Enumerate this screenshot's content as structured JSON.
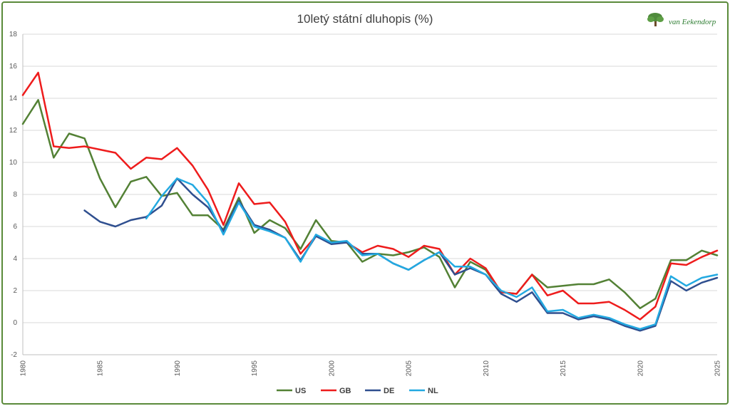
{
  "chart_data": {
    "type": "line",
    "title": "10letý státní dluhopis (%)",
    "xlabel": "",
    "ylabel": "",
    "xlim": [
      1980,
      2025
    ],
    "ylim": [
      -2,
      18
    ],
    "yticks": [
      -2,
      0,
      2,
      4,
      6,
      8,
      10,
      12,
      14,
      16,
      18
    ],
    "xticks": [
      1980,
      1985,
      1990,
      1995,
      2000,
      2005,
      2010,
      2015,
      2020,
      2025
    ],
    "grid": "horizontal",
    "legend_position": "bottom",
    "series": [
      {
        "name": "US",
        "color": "#538135",
        "x": [
          1980,
          1981,
          1982,
          1983,
          1984,
          1985,
          1986,
          1987,
          1988,
          1989,
          1990,
          1991,
          1992,
          1993,
          1994,
          1995,
          1996,
          1997,
          1998,
          1999,
          2000,
          2001,
          2002,
          2003,
          2004,
          2005,
          2006,
          2007,
          2008,
          2009,
          2010,
          2011,
          2012,
          2013,
          2014,
          2015,
          2016,
          2017,
          2018,
          2019,
          2020,
          2021,
          2022,
          2023,
          2024,
          2025
        ],
        "values": [
          12.4,
          13.9,
          10.3,
          11.8,
          11.5,
          9.0,
          7.2,
          8.8,
          9.1,
          7.9,
          8.1,
          6.7,
          6.7,
          5.8,
          7.8,
          5.6,
          6.4,
          5.9,
          4.6,
          6.4,
          5.1,
          5.0,
          3.8,
          4.3,
          4.2,
          4.4,
          4.7,
          4.1,
          2.2,
          3.8,
          3.3,
          1.9,
          1.8,
          3.0,
          2.2,
          2.3,
          2.4,
          2.4,
          2.7,
          1.9,
          0.9,
          1.5,
          3.9,
          3.9,
          4.5,
          4.2
        ]
      },
      {
        "name": "GB",
        "color": "#ee1c1c",
        "x": [
          1980,
          1981,
          1982,
          1983,
          1984,
          1985,
          1986,
          1987,
          1988,
          1989,
          1990,
          1991,
          1992,
          1993,
          1994,
          1995,
          1996,
          1997,
          1998,
          1999,
          2000,
          2001,
          2002,
          2003,
          2004,
          2005,
          2006,
          2007,
          2008,
          2009,
          2010,
          2011,
          2012,
          2013,
          2014,
          2015,
          2016,
          2017,
          2018,
          2019,
          2020,
          2021,
          2022,
          2023,
          2024,
          2025
        ],
        "values": [
          14.2,
          15.6,
          11.0,
          10.9,
          11.0,
          10.8,
          10.6,
          9.6,
          10.3,
          10.2,
          10.9,
          9.8,
          8.3,
          6.1,
          8.7,
          7.4,
          7.5,
          6.3,
          4.3,
          5.4,
          5.0,
          5.0,
          4.4,
          4.8,
          4.6,
          4.1,
          4.8,
          4.6,
          3.0,
          4.0,
          3.4,
          1.9,
          1.8,
          3.0,
          1.7,
          2.0,
          1.2,
          1.2,
          1.3,
          0.8,
          0.2,
          1.0,
          3.7,
          3.6,
          4.1,
          4.5
        ]
      },
      {
        "name": "DE",
        "color": "#2f4f8f",
        "x": [
          1984,
          1985,
          1986,
          1987,
          1988,
          1989,
          1990,
          1991,
          1992,
          1993,
          1994,
          1995,
          1996,
          1997,
          1998,
          1999,
          2000,
          2001,
          2002,
          2003,
          2004,
          2005,
          2006,
          2007,
          2008,
          2009,
          2010,
          2011,
          2012,
          2013,
          2014,
          2015,
          2016,
          2017,
          2018,
          2019,
          2020,
          2021,
          2022,
          2023,
          2024,
          2025
        ],
        "values": [
          7.0,
          6.3,
          6.0,
          6.4,
          6.6,
          7.3,
          9.0,
          8.0,
          7.2,
          5.7,
          7.6,
          6.1,
          5.8,
          5.3,
          3.9,
          5.4,
          4.9,
          5.0,
          4.3,
          4.3,
          3.7,
          3.3,
          3.9,
          4.4,
          3.0,
          3.4,
          3.0,
          1.8,
          1.3,
          1.9,
          0.6,
          0.6,
          0.2,
          0.4,
          0.2,
          -0.2,
          -0.5,
          -0.2,
          2.6,
          2.0,
          2.5,
          2.8
        ]
      },
      {
        "name": "NL",
        "color": "#23a9e1",
        "x": [
          1988,
          1989,
          1990,
          1991,
          1992,
          1993,
          1994,
          1995,
          1996,
          1997,
          1998,
          1999,
          2000,
          2001,
          2002,
          2003,
          2004,
          2005,
          2006,
          2007,
          2008,
          2009,
          2010,
          2011,
          2012,
          2013,
          2014,
          2015,
          2016,
          2017,
          2018,
          2019,
          2020,
          2021,
          2022,
          2023,
          2024,
          2025
        ],
        "values": [
          6.5,
          7.9,
          9.0,
          8.6,
          7.5,
          5.5,
          7.5,
          6.0,
          5.7,
          5.3,
          3.8,
          5.5,
          5.0,
          5.1,
          4.2,
          4.3,
          3.7,
          3.3,
          3.9,
          4.4,
          3.5,
          3.5,
          3.0,
          2.0,
          1.6,
          2.2,
          0.7,
          0.8,
          0.3,
          0.5,
          0.3,
          -0.1,
          -0.4,
          -0.1,
          2.9,
          2.3,
          2.8,
          3.0
        ]
      }
    ]
  },
  "logo": {
    "text": "van Eekendorp",
    "icon": "tree-icon"
  }
}
